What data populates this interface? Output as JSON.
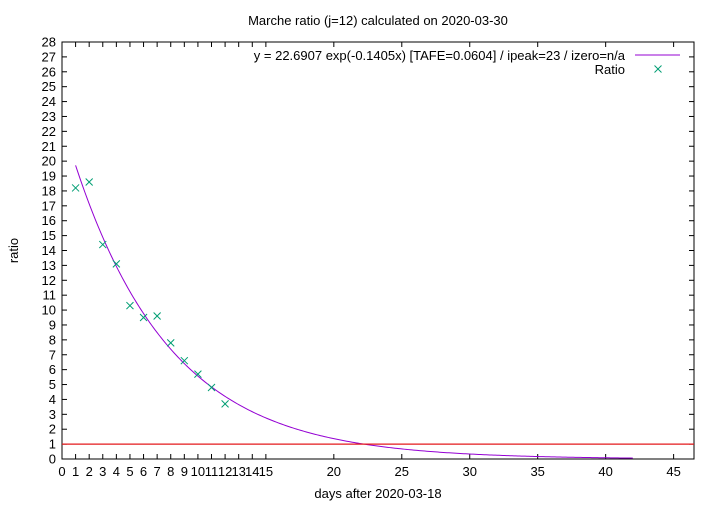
{
  "chart_data": {
    "type": "scatter",
    "title": "Marche ratio (j=12) calculated on 2020-03-30",
    "xlabel": "days after 2020-03-18",
    "ylabel": "ratio",
    "xlim": [
      0,
      46.5
    ],
    "ylim": [
      0,
      28
    ],
    "x_ticks": [
      0,
      1,
      2,
      3,
      4,
      5,
      6,
      7,
      8,
      9,
      10,
      11,
      12,
      13,
      14,
      15,
      20,
      25,
      30,
      35,
      40,
      45
    ],
    "y_ticks": [
      0,
      1,
      2,
      3,
      4,
      5,
      6,
      7,
      8,
      9,
      10,
      11,
      12,
      13,
      14,
      15,
      16,
      17,
      18,
      19,
      20,
      21,
      22,
      23,
      24,
      25,
      26,
      27,
      28
    ],
    "grid": false,
    "legend_position": "top-right",
    "series": [
      {
        "name": "y = 22.6907 exp(-0.1405x)  [TAFE=0.0604] / ipeak=23 / izero=n/a",
        "kind": "fit-line",
        "color": "#9400d3",
        "model": {
          "a": 22.6907,
          "b": -0.1405,
          "x_start": 1,
          "x_end": 42
        }
      },
      {
        "name": "Ratio",
        "kind": "points",
        "marker": "x",
        "color": "#009e73",
        "x": [
          1,
          2,
          3,
          4,
          5,
          6,
          7,
          8,
          9,
          10,
          11,
          12
        ],
        "y": [
          18.2,
          18.6,
          14.4,
          13.1,
          10.3,
          9.5,
          9.6,
          7.8,
          6.6,
          5.7,
          4.8,
          3.7
        ]
      },
      {
        "name": "",
        "kind": "reference-line",
        "color": "#e41a1c",
        "y_value": 1
      }
    ]
  }
}
